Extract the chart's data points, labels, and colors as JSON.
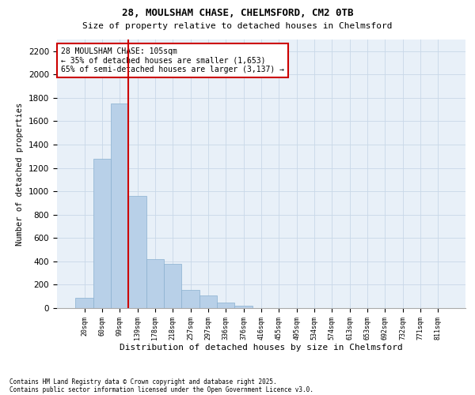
{
  "title1": "28, MOULSHAM CHASE, CHELMSFORD, CM2 0TB",
  "title2": "Size of property relative to detached houses in Chelmsford",
  "xlabel": "Distribution of detached houses by size in Chelmsford",
  "ylabel": "Number of detached properties",
  "bar_categories": [
    "20sqm",
    "60sqm",
    "99sqm",
    "139sqm",
    "178sqm",
    "218sqm",
    "257sqm",
    "297sqm",
    "336sqm",
    "376sqm",
    "416sqm",
    "455sqm",
    "495sqm",
    "534sqm",
    "574sqm",
    "613sqm",
    "653sqm",
    "692sqm",
    "732sqm",
    "771sqm",
    "811sqm"
  ],
  "bar_values": [
    90,
    1280,
    1750,
    960,
    420,
    380,
    155,
    110,
    45,
    20,
    0,
    0,
    0,
    0,
    0,
    0,
    0,
    0,
    0,
    0,
    0
  ],
  "bar_color": "#b8d0e8",
  "bar_edge_color": "#8ab0d0",
  "bg_color": "#e8f0f8",
  "grid_color": "#c8d8e8",
  "vline_color": "#cc0000",
  "ylim": [
    0,
    2300
  ],
  "yticks": [
    0,
    200,
    400,
    600,
    800,
    1000,
    1200,
    1400,
    1600,
    1800,
    2000,
    2200
  ],
  "annotation_title": "28 MOULSHAM CHASE: 105sqm",
  "annotation_line1": "← 35% of detached houses are smaller (1,653)",
  "annotation_line2": "65% of semi-detached houses are larger (3,137) →",
  "footnote1": "Contains HM Land Registry data © Crown copyright and database right 2025.",
  "footnote2": "Contains public sector information licensed under the Open Government Licence v3.0."
}
